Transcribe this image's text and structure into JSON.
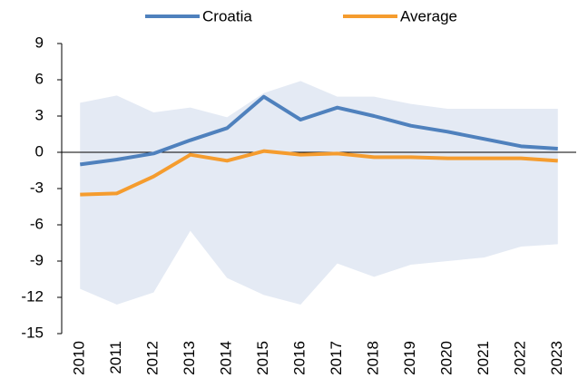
{
  "chart_data": {
    "type": "line",
    "categories": [
      "2010",
      "2011",
      "2012",
      "2013",
      "2014",
      "2015",
      "2016",
      "2017",
      "2018",
      "2019",
      "2020",
      "2021",
      "2022",
      "2023"
    ],
    "range": {
      "color": "#e4eaf4",
      "upper": [
        4.1,
        4.7,
        3.3,
        3.7,
        2.9,
        4.9,
        5.9,
        4.6,
        4.6,
        4.0,
        3.6,
        3.6,
        3.6,
        3.6
      ],
      "lower": [
        -11.3,
        -12.6,
        -11.6,
        -6.5,
        -10.4,
        -11.8,
        -12.6,
        -9.2,
        -10.3,
        -9.3,
        -9.0,
        -8.7,
        -7.8,
        -7.6
      ]
    },
    "series": [
      {
        "name": "Croatia",
        "color": "#4f81bd",
        "values": [
          -1.0,
          -0.6,
          -0.1,
          1.0,
          2.0,
          4.6,
          2.7,
          3.7,
          3.0,
          2.2,
          1.7,
          1.1,
          0.5,
          0.3
        ]
      },
      {
        "name": "Average",
        "color": "#f59c2e",
        "values": [
          -3.5,
          -3.4,
          -2.0,
          -0.2,
          -0.7,
          0.1,
          -0.2,
          -0.1,
          -0.4,
          -0.4,
          -0.5,
          -0.5,
          -0.5,
          -0.7
        ]
      }
    ],
    "ylim": [
      -15,
      9
    ],
    "yticks": [
      -15,
      -12,
      -9,
      -6,
      -3,
      0,
      3,
      6,
      9
    ],
    "legend": "top"
  }
}
